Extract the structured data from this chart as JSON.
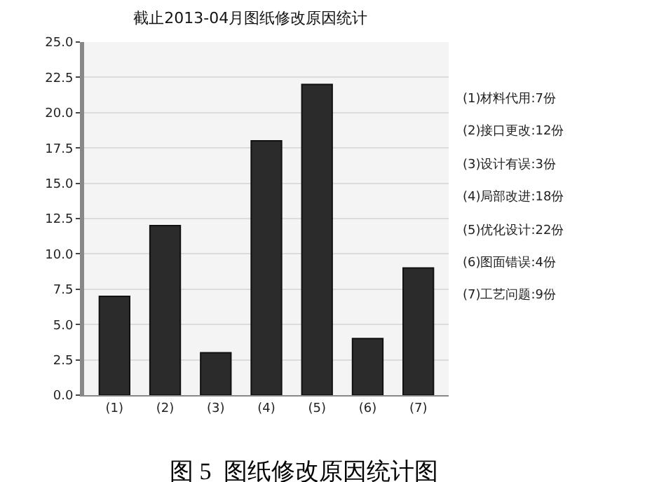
{
  "chart_data": {
    "type": "bar",
    "title": "截止2013-04月图纸修改原因统计",
    "categories": [
      "(1)",
      "(2)",
      "(3)",
      "(4)",
      "(5)",
      "(6)",
      "(7)"
    ],
    "values": [
      7,
      12,
      3,
      18,
      22,
      4,
      9
    ],
    "color": "#2b2b2b",
    "ylim": [
      0,
      25
    ],
    "yticks": [
      {
        "value": 0,
        "label": "0.0"
      },
      {
        "value": 2.5,
        "label": "2.5"
      },
      {
        "value": 5,
        "label": "5.0"
      },
      {
        "value": 7.5,
        "label": "7.5"
      },
      {
        "value": 10,
        "label": "10.0"
      },
      {
        "value": 12.5,
        "label": "12.5"
      },
      {
        "value": 15,
        "label": "15.0"
      },
      {
        "value": 17.5,
        "label": "17.5"
      },
      {
        "value": 20,
        "label": "20.0"
      },
      {
        "value": 22.5,
        "label": "22.5"
      },
      {
        "value": 25,
        "label": "25.0"
      }
    ],
    "grid": "y",
    "annotations": [
      "(1)材料代用:7份",
      "(2)接口更改:12份",
      "(3)设计有误:3份",
      "(4)局部改进:18份",
      "(5)优化设计:22份",
      "(6)图面错误:4份",
      "(7)工艺问题:9份",
      "图 5  图纸修改原因统计图"
    ]
  }
}
